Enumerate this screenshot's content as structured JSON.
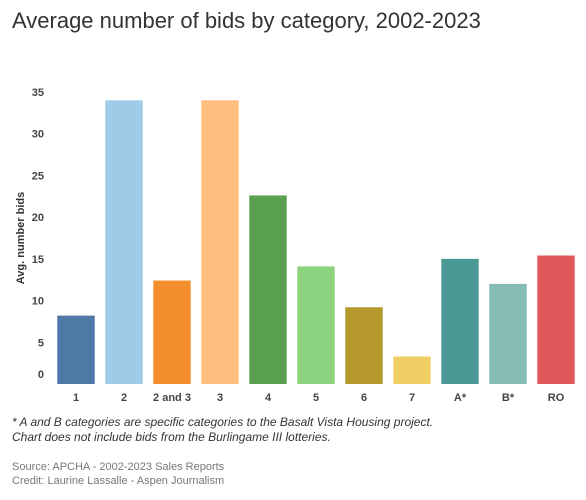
{
  "title": "Average number of bids by category, 2002-2023",
  "notes": [
    "* A and B categories are specific categories to the Basalt Vista Housing project.",
    "Chart does not include bids from the Burlingame III lotteries."
  ],
  "source_lines": [
    "Source: APCHA - 2002-2023 Sales Reports",
    "Credit: Laurine Lassalle - Aspen Journalism"
  ],
  "chart_data": {
    "type": "bar",
    "title": "Average number of bids by category, 2002-2023",
    "xlabel": "",
    "ylabel": "Avg. number bids",
    "ylim": [
      0,
      35
    ],
    "yticks": [
      0,
      5,
      10,
      15,
      20,
      25,
      30,
      35
    ],
    "grid": false,
    "legend": "none",
    "categories": [
      "1",
      "2",
      "2 and 3",
      "3",
      "4",
      "5",
      "6",
      "7",
      "A*",
      "B*",
      "RO"
    ],
    "values": [
      8.2,
      34.0,
      12.4,
      34.0,
      22.6,
      14.1,
      9.2,
      3.3,
      15.0,
      12.0,
      15.4
    ],
    "colors": [
      "#4e79a7",
      "#a0cbe8",
      "#f28e2b",
      "#ffbe7d",
      "#59a14f",
      "#8cd17d",
      "#b6992d",
      "#f1ce63",
      "#499894",
      "#86bcb6",
      "#e15759"
    ]
  }
}
